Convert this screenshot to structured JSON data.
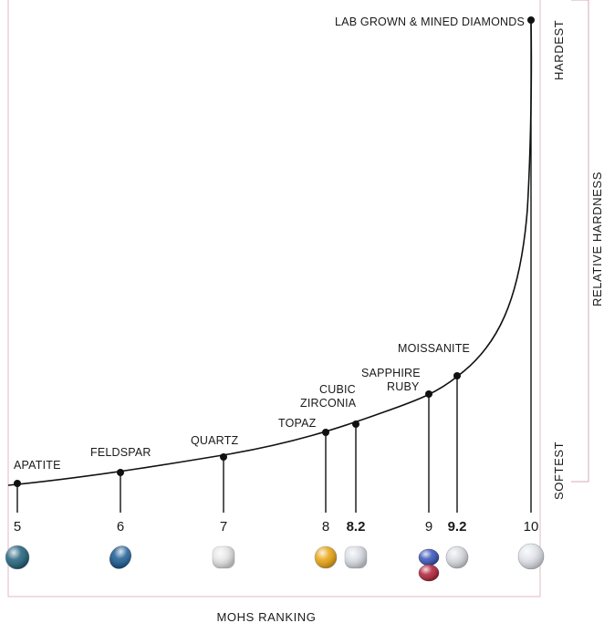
{
  "chart_data": {
    "type": "line",
    "title": "",
    "xlabel": "MOHS RANKING",
    "ylabel": "RELATIVE HARDNESS",
    "y_top_label": "HARDEST",
    "y_bottom_label": "SOFTEST",
    "xlim": [
      5,
      10
    ],
    "grid": false,
    "points": [
      {
        "x": 5,
        "tick": "5",
        "labels": [
          "APATITE"
        ],
        "gems": [
          {
            "name": "apatite-gem",
            "color": "#1f5f7a",
            "shape": "round"
          }
        ]
      },
      {
        "x": 6,
        "tick": "6",
        "labels": [
          "FELDSPAR"
        ],
        "gems": [
          {
            "name": "feldspar-gem",
            "color": "#1b5c95",
            "shape": "oval"
          }
        ]
      },
      {
        "x": 7,
        "tick": "7",
        "labels": [
          "QUARTZ"
        ],
        "gems": [
          {
            "name": "quartz-gem",
            "color": "#e4e4e4",
            "shape": "cushion"
          }
        ]
      },
      {
        "x": 8,
        "tick": "8",
        "labels": [
          "TOPAZ"
        ],
        "gems": [
          {
            "name": "topaz-gem",
            "color": "#e8a20c",
            "shape": "round"
          }
        ]
      },
      {
        "x": 8.2,
        "tick": "8.2",
        "labels": [
          "CUBIC",
          "ZIRCONIA"
        ],
        "gems": [
          {
            "name": "cubic-zirconia-gem",
            "color": "#d8dce3",
            "shape": "cushion"
          }
        ]
      },
      {
        "x": 9,
        "tick": "9",
        "labels": [
          "SAPPHIRE",
          "RUBY"
        ],
        "gems": [
          {
            "name": "sapphire-gem",
            "color": "#3552b8",
            "shape": "oval"
          },
          {
            "name": "ruby-gem",
            "color": "#b01f35",
            "shape": "oval"
          }
        ]
      },
      {
        "x": 9.2,
        "tick": "9.2",
        "labels": [
          "MOISSANITE"
        ],
        "gems": [
          {
            "name": "moissanite-gem",
            "color": "#d6d9de",
            "shape": "round"
          }
        ]
      },
      {
        "x": 10,
        "tick": "10",
        "labels": [
          "LAB GROWN & MINED DIAMONDS"
        ],
        "gems": [
          {
            "name": "diamond-gem",
            "color": "#dfe2e8",
            "shape": "round"
          }
        ]
      }
    ],
    "colors": {
      "curve": "#111111",
      "frame": "#e3b9c1",
      "bracket": "#d9a9b3"
    }
  }
}
